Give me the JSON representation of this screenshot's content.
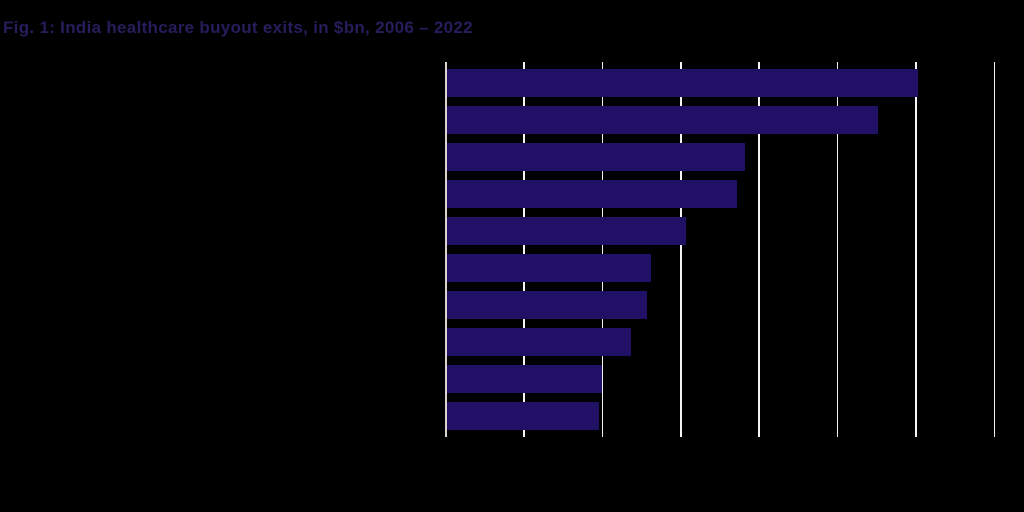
{
  "chart_data": {
    "type": "bar",
    "orientation": "horizontal",
    "title": "Fig. 1: India healthcare buyout exits, in $bn, 2006 – 2022",
    "categories": [
      "",
      "",
      "",
      "",
      "",
      "",
      "",
      "",
      "",
      ""
    ],
    "values": [
      6.0,
      5.5,
      3.8,
      3.7,
      3.05,
      2.6,
      2.55,
      2.35,
      1.98,
      1.94
    ],
    "xlabel": "",
    "ylabel": "",
    "xlim": [
      0,
      7
    ],
    "grid_step": 1,
    "grid_on": true,
    "legend": "none",
    "colors": {
      "background": "#000000",
      "bar": "#201166",
      "title": "#281d5c",
      "gridline": "#f4f4f4",
      "axis_line": "#d8d4cd"
    }
  }
}
